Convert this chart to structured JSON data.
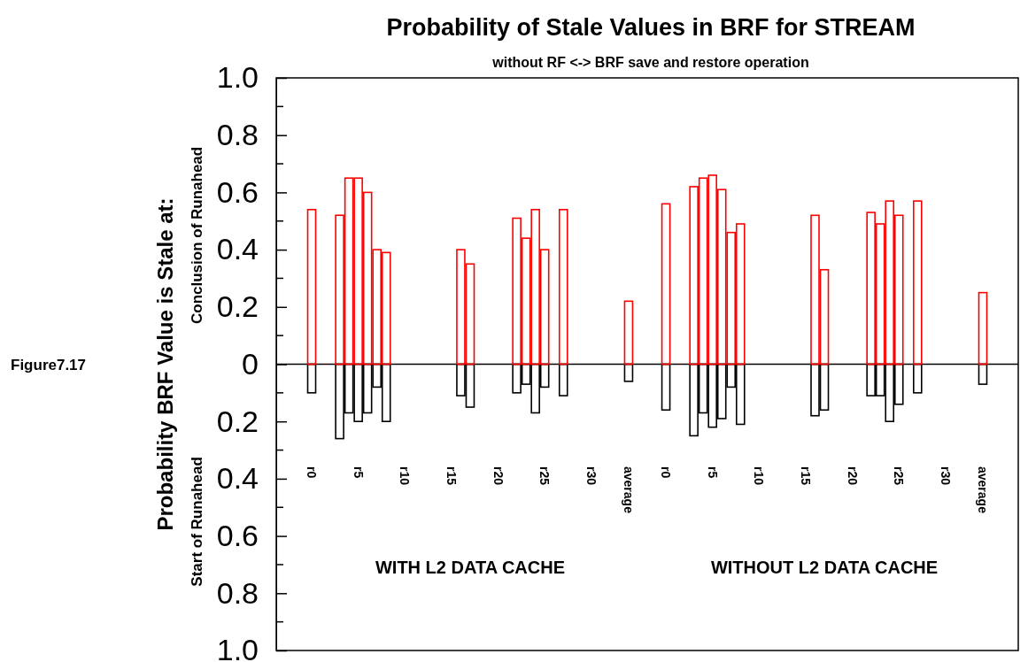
{
  "chart_data": {
    "type": "bar",
    "title": "Probability of Stale Values in BRF for STREAM",
    "subtitle": "without RF <-> BRF save and restore operation",
    "ylabel": "Probability BRF Value is Stale at:",
    "annotations": [
      "Figure7.17",
      "Conclusion of Runahead",
      "Start of Runahead",
      "WITH L2 DATA CACHE",
      "WITHOUT L2 DATA CACHE"
    ],
    "categories": [
      "r0",
      null,
      null,
      null,
      null,
      "r5",
      null,
      null,
      null,
      null,
      "r10",
      null,
      null,
      null,
      null,
      "r15",
      null,
      null,
      null,
      null,
      "r20",
      null,
      null,
      null,
      null,
      "r25",
      null,
      null,
      null,
      null,
      "r30",
      null,
      null,
      null,
      "average",
      null,
      null,
      null,
      "r0",
      null,
      null,
      null,
      null,
      "r5",
      null,
      null,
      null,
      null,
      "r10",
      null,
      null,
      null,
      null,
      "r15",
      null,
      null,
      null,
      null,
      "r20",
      null,
      null,
      null,
      null,
      "r25",
      null,
      null,
      null,
      null,
      "r30",
      null,
      null,
      null,
      "average"
    ],
    "series": [
      {
        "color": "#000000",
        "values": [
          -0.1,
          0,
          0,
          -0.26,
          -0.17,
          -0.2,
          -0.17,
          -0.08,
          -0.2,
          0,
          0,
          0,
          0,
          0,
          0,
          0,
          -0.11,
          -0.15,
          0,
          0,
          0,
          0,
          -0.1,
          -0.07,
          -0.17,
          -0.08,
          0,
          -0.11,
          0,
          0,
          0,
          0,
          null,
          null,
          -0.06,
          null,
          null,
          null,
          -0.16,
          0,
          0,
          -0.25,
          -0.17,
          -0.22,
          -0.19,
          -0.08,
          -0.21,
          0,
          0,
          0,
          0,
          0,
          0,
          0,
          -0.18,
          -0.16,
          0,
          0,
          0,
          0,
          -0.11,
          -0.11,
          -0.2,
          -0.14,
          0,
          -0.1,
          0,
          0,
          0,
          0,
          null,
          null,
          -0.07
        ]
      },
      {
        "color": "#ff0000",
        "values": [
          0.54,
          0,
          0,
          0.52,
          0.65,
          0.65,
          0.6,
          0.4,
          0.39,
          0,
          0,
          0,
          0,
          0,
          0,
          0,
          0.4,
          0.35,
          0,
          0,
          0,
          0,
          0.51,
          0.44,
          0.54,
          0.4,
          0,
          0.54,
          0,
          0,
          0,
          0,
          null,
          null,
          0.22,
          null,
          null,
          null,
          0.56,
          0,
          0,
          0.62,
          0.65,
          0.66,
          0.61,
          0.46,
          0.49,
          0,
          0,
          0,
          0,
          0,
          0,
          0,
          0.52,
          0.33,
          0,
          0,
          0,
          0,
          0.53,
          0.49,
          0.57,
          0.52,
          0,
          0.57,
          0,
          0,
          0,
          0,
          null,
          null,
          0.25
        ]
      }
    ],
    "ylim": [
      -1,
      1
    ],
    "yticks": [
      {
        "value": 1,
        "label": "1.0"
      },
      0.8,
      0.6,
      0.4,
      0.2,
      0,
      {
        "value": -0.2,
        "label": "0.2"
      },
      {
        "value": -0.4,
        "label": "0.4"
      },
      {
        "value": -0.6,
        "label": "0.6"
      },
      {
        "value": -0.8,
        "label": "0.8"
      },
      {
        "value": -1,
        "label": "1.0"
      }
    ]
  }
}
